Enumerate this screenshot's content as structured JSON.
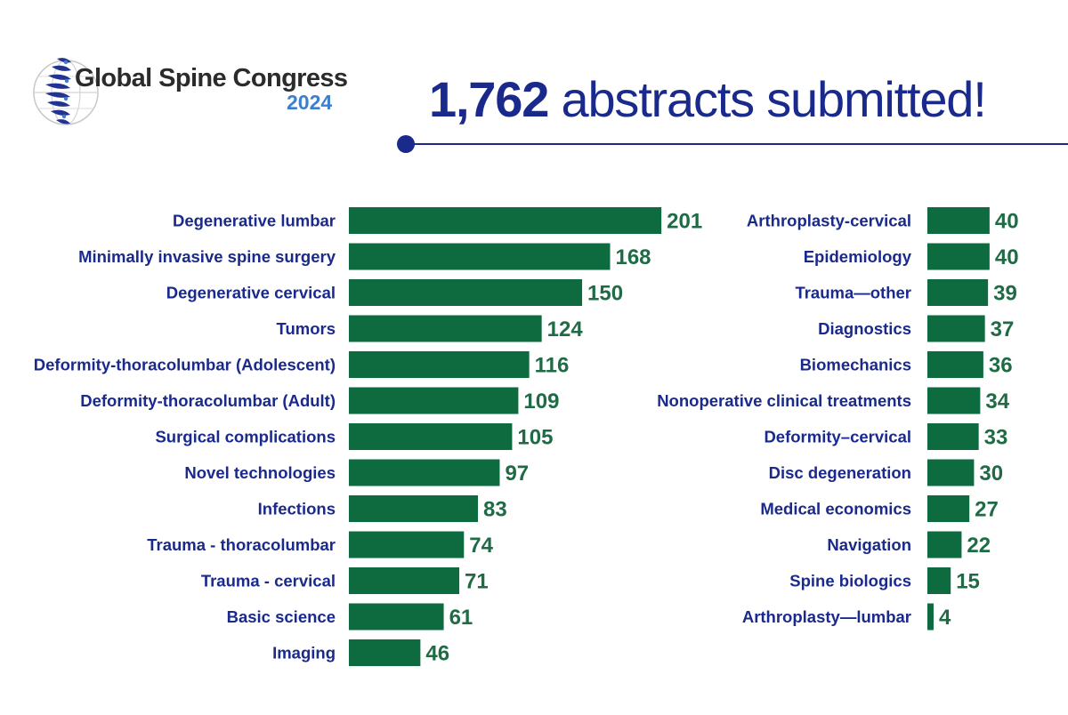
{
  "logo": {
    "title": "Global Spine Congress",
    "year": "2024",
    "icon": "spine-globe-icon"
  },
  "headline": {
    "count": "1,762",
    "text": " abstracts submitted!"
  },
  "colors": {
    "bar": "#0e6b3f",
    "value": "#1f6b45",
    "label": "#1a2a8c",
    "accent": "#1a2a8c",
    "year": "#3a7fd0"
  },
  "chart_data": [
    {
      "type": "bar",
      "orientation": "horizontal",
      "categories": [
        "Degenerative lumbar",
        "Minimally invasive spine surgery",
        "Degenerative cervical",
        "Tumors",
        "Deformity-thoracolumbar (Adolescent)",
        "Deformity-thoracolumbar (Adult)",
        "Surgical complications",
        "Novel technologies",
        "Infections",
        "Trauma - thoracolumbar",
        "Trauma - cervical",
        "Basic science",
        "Imaging"
      ],
      "values": [
        201,
        168,
        150,
        124,
        116,
        109,
        105,
        97,
        83,
        74,
        71,
        61,
        46
      ]
    },
    {
      "type": "bar",
      "orientation": "horizontal",
      "categories": [
        "Arthroplasty-cervical",
        "Epidemiology",
        "Trauma—other",
        "Diagnostics",
        "Biomechanics",
        "Nonoperative clinical treatments",
        "Deformity–cervical",
        "Disc degeneration",
        "Medical economics",
        "Navigation",
        "Spine biologics",
        "Arthroplasty—lumbar"
      ],
      "values": [
        40,
        40,
        39,
        37,
        36,
        34,
        33,
        30,
        27,
        22,
        15,
        4
      ]
    }
  ]
}
